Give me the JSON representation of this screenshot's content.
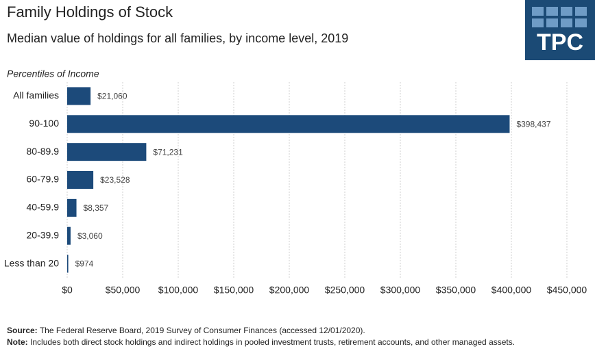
{
  "chart_data": {
    "type": "hbar",
    "title": "Family Holdings of Stock",
    "subtitle": "Median value of holdings for all families, by income level, 2019",
    "y_label": "Percentiles of Income",
    "categories": [
      "All families",
      "90-100",
      "80-89.9",
      "60-79.9",
      "40-59.9",
      "20-39.9",
      "Less than 20"
    ],
    "values": [
      21060,
      398437,
      71231,
      23528,
      8357,
      3060,
      974
    ],
    "value_labels": [
      "$21,060",
      "$398,437",
      "$71,231",
      "$23,528",
      "$8,357",
      "$3,060",
      "$974"
    ],
    "color": "#1c4a7a",
    "xlim": [
      0,
      450000
    ],
    "xticks": [
      {
        "value": 0,
        "label": "$0"
      },
      {
        "value": 50000,
        "label": "$50,000"
      },
      {
        "value": 100000,
        "label": "$100,000"
      },
      {
        "value": 150000,
        "label": "$150,000"
      },
      {
        "value": 200000,
        "label": "$200,000"
      },
      {
        "value": 250000,
        "label": "$250,000"
      },
      {
        "value": 300000,
        "label": "$300,000"
      },
      {
        "value": 350000,
        "label": "$350,000"
      },
      {
        "value": 400000,
        "label": "$400,000"
      },
      {
        "value": 450000,
        "label": "$450,000"
      }
    ],
    "grid": true,
    "source_label": "Source:",
    "source": "The Federal Reserve Board, 2019 Survey of Consumer Finances (accessed 12/01/2020).",
    "note_label": "Note:",
    "note": "Includes both direct stock holdings and indirect holdings in pooled investment trusts, retirement accounts, and other managed assets.",
    "logo": "TPC"
  }
}
